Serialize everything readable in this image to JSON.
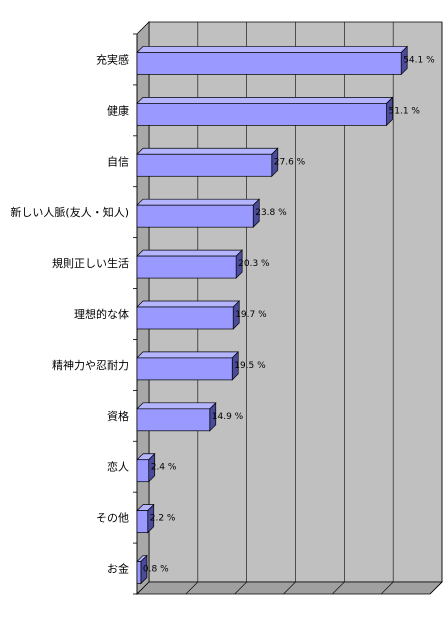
{
  "chart_data": {
    "type": "bar",
    "orientation": "horizontal",
    "style": "3d",
    "categories": [
      "充実感",
      "健康",
      "自信",
      "新しい人脈(友人・知人)",
      "規則正しい生活",
      "理想的な体",
      "精神力や忍耐力",
      "資格",
      "恋人",
      "その他",
      "お金"
    ],
    "values": [
      54.1,
      51.1,
      27.6,
      23.8,
      20.3,
      19.7,
      19.5,
      14.9,
      2.4,
      2.2,
      0.8
    ],
    "value_labels": [
      "54.1 %",
      "51.1 %",
      "27.6 %",
      "23.8 %",
      "20.3 %",
      "19.7 %",
      "19.5 %",
      "14.9 %",
      "2.4 %",
      "2.2 %",
      "0.8 %"
    ],
    "xlim": [
      0,
      60
    ],
    "grid": true,
    "legend": "none",
    "title": "",
    "xlabel": "",
    "ylabel": "",
    "colors": {
      "bar_face": "#9999ff",
      "bar_top": "#b4b4ff",
      "bar_side": "#4b4b9b",
      "bar_outline": "#000000",
      "plot_wall": "#c0c0c0",
      "plot_floor": "#a0a0a0",
      "grid": "#000000"
    }
  }
}
